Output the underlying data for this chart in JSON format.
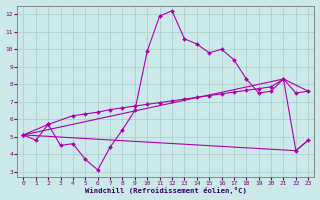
{
  "xlabel": "Windchill (Refroidissement éolien,°C)",
  "background_color": "#cbe9e9",
  "grid_color": "#aacccc",
  "line_color": "#aa00aa",
  "xlim": [
    -0.5,
    23.5
  ],
  "ylim": [
    2.7,
    12.5
  ],
  "yticks": [
    3,
    4,
    5,
    6,
    7,
    8,
    9,
    10,
    11,
    12
  ],
  "xticks": [
    0,
    1,
    2,
    3,
    4,
    5,
    6,
    7,
    8,
    9,
    10,
    11,
    12,
    13,
    14,
    15,
    16,
    17,
    18,
    19,
    20,
    21,
    22,
    23
  ],
  "line1_x": [
    0,
    1,
    2,
    3,
    4,
    5,
    6,
    7,
    8,
    9,
    10,
    11,
    12,
    13,
    14,
    15,
    16,
    17,
    18,
    19,
    20,
    21,
    22,
    23
  ],
  "line1_y": [
    5.1,
    4.8,
    5.7,
    4.5,
    4.6,
    3.7,
    3.1,
    4.4,
    5.4,
    6.5,
    9.9,
    11.9,
    12.2,
    10.6,
    10.3,
    9.8,
    10.0,
    9.4,
    8.3,
    7.5,
    7.6,
    8.3,
    4.2,
    4.8
  ],
  "line2_x": [
    0,
    2,
    4,
    5,
    6,
    7,
    8,
    9,
    10,
    11,
    12,
    13,
    14,
    15,
    16,
    17,
    18,
    19,
    20,
    21,
    22,
    23
  ],
  "line2_y": [
    5.1,
    5.7,
    6.2,
    6.3,
    6.4,
    6.55,
    6.65,
    6.75,
    6.85,
    6.95,
    7.05,
    7.15,
    7.25,
    7.35,
    7.45,
    7.55,
    7.65,
    7.75,
    7.85,
    8.3,
    7.5,
    7.6
  ],
  "line3_x": [
    0,
    21,
    23
  ],
  "line3_y": [
    5.1,
    8.3,
    7.6
  ],
  "line4_x": [
    0,
    22,
    23
  ],
  "line4_y": [
    5.1,
    4.2,
    4.8
  ]
}
